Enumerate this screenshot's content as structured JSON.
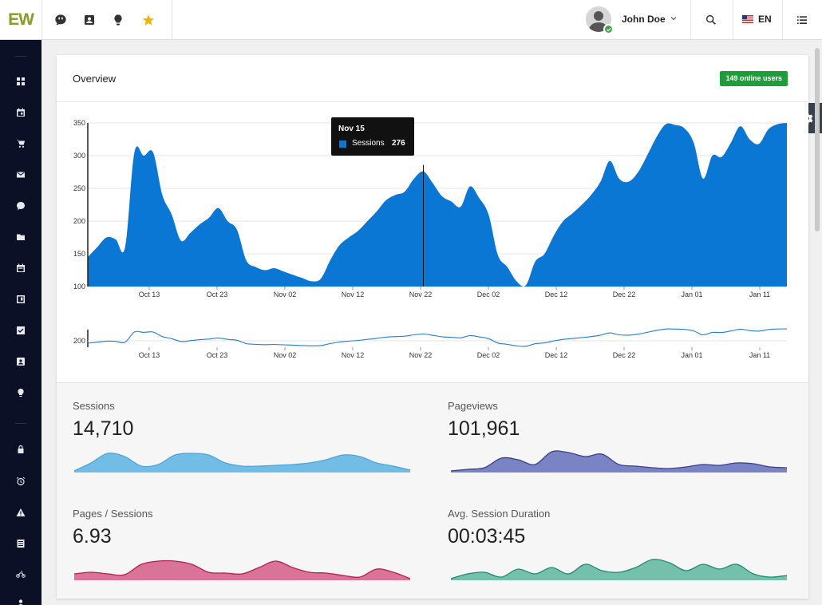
{
  "brand": {
    "logo_text": "EW"
  },
  "header": {
    "user_name": "John Doe",
    "language": "EN",
    "icons": [
      "chat-icon",
      "contact-icon",
      "lightbulb-icon",
      "star-icon",
      "search-icon",
      "menu-icon"
    ]
  },
  "sidebar": {
    "items": [
      "dashboard-icon",
      "calendar-icon",
      "cart-icon",
      "mail-icon",
      "chat-icon",
      "folder-icon",
      "event-icon",
      "board-icon",
      "checkbox-icon",
      "contact-icon",
      "lightbulb-icon",
      "lock-icon",
      "alarm-icon",
      "warning-icon",
      "list-icon",
      "motorcycle-icon",
      "person-icon"
    ]
  },
  "overview": {
    "title": "Overview",
    "online_badge": "149 online users",
    "tooltip": {
      "date": "Nov 15",
      "series": "Sessions",
      "value": "276"
    }
  },
  "chart_data": [
    {
      "type": "area",
      "ylim": [
        100,
        350
      ],
      "yticks": [
        100,
        150,
        200,
        250,
        300,
        350
      ],
      "xticks": [
        "Oct 13",
        "Oct 23",
        "Nov 02",
        "Nov 12",
        "Nov 22",
        "Dec 02",
        "Dec 12",
        "Dec 22",
        "Jan 01",
        "Jan 11"
      ],
      "series": [
        {
          "name": "Sessions",
          "color": "#0a77d5",
          "values": [
            145,
            160,
            175,
            172,
            160,
            305,
            300,
            305,
            240,
            210,
            170,
            182,
            195,
            205,
            220,
            200,
            187,
            140,
            130,
            125,
            128,
            123,
            118,
            113,
            108,
            112,
            140,
            163,
            175,
            185,
            200,
            215,
            232,
            240,
            245,
            265,
            276,
            258,
            238,
            230,
            222,
            253,
            235,
            210,
            148,
            130,
            108,
            102,
            138,
            150,
            178,
            200,
            212,
            225,
            240,
            260,
            292,
            265,
            260,
            274,
            300,
            328,
            348,
            347,
            342,
            320,
            265,
            300,
            298,
            320,
            345,
            325,
            318,
            340,
            348,
            350
          ]
        }
      ]
    },
    {
      "type": "line",
      "yticks": [
        200
      ],
      "xticks": [
        "Oct 13",
        "Oct 23",
        "Nov 02",
        "Nov 12",
        "Nov 22",
        "Dec 02",
        "Dec 12",
        "Dec 22",
        "Jan 01",
        "Jan 11"
      ],
      "series": [
        {
          "name": "Sessions",
          "color": "#1e7fd6"
        }
      ]
    }
  ],
  "stats": [
    {
      "label": "Sessions",
      "value": "14,710",
      "color": "#4aa6dc",
      "fill": "#72bde6"
    },
    {
      "label": "Pageviews",
      "value": "101,961",
      "color": "#3a3f8f",
      "fill": "#7a84c4"
    },
    {
      "label": "Pages / Sessions",
      "value": "6.93",
      "color": "#b81d4f",
      "fill": "#da7398"
    },
    {
      "label": "Avg. Session Duration",
      "value": "00:03:45",
      "color": "#1f8a75",
      "fill": "#74c0ab"
    }
  ]
}
